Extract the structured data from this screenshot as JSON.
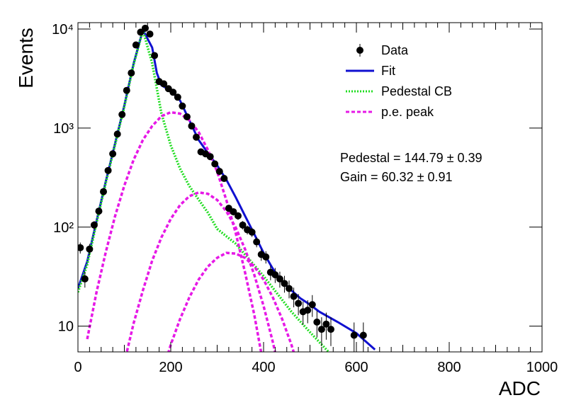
{
  "chart_data": {
    "type": "scatter",
    "xlabel": "ADC",
    "ylabel": "Events",
    "xlim": [
      0,
      1000
    ],
    "ylim": [
      5.5,
      11600
    ],
    "ylog": true,
    "xticks": [
      0,
      200,
      400,
      600,
      800,
      1000
    ],
    "yticks": [
      {
        "value": 10,
        "label": "10"
      },
      {
        "value": 100,
        "label": "10²"
      },
      {
        "value": 1000,
        "label": "10³"
      },
      {
        "value": 10000,
        "label": "10⁴"
      }
    ],
    "legend": "top-right",
    "annotations": [
      "Pedestal = 144.79 ± 0.39",
      "Gain = 60.32 ± 0.91"
    ],
    "series": [
      {
        "name": "Data",
        "kind": "points",
        "color": "#000000",
        "x": [
          5,
          15,
          25,
          35,
          45,
          55,
          65,
          75,
          85,
          95,
          105,
          115,
          125,
          135,
          145,
          155,
          165,
          175,
          185,
          195,
          205,
          215,
          225,
          235,
          245,
          255,
          265,
          275,
          285,
          295,
          305,
          315,
          325,
          335,
          345,
          355,
          365,
          375,
          385,
          395,
          405,
          415,
          425,
          435,
          445,
          455,
          465,
          475,
          485,
          495,
          505,
          515,
          525,
          535,
          545,
          595,
          615
        ],
        "values": [
          62,
          30,
          60,
          105,
          145,
          228,
          373,
          550,
          870,
          1370,
          2400,
          3600,
          6900,
          9300,
          10200,
          8900,
          5400,
          2950,
          2800,
          2500,
          2300,
          2050,
          1670,
          1300,
          1050,
          810,
          575,
          550,
          515,
          435,
          365,
          310,
          155,
          143,
          130,
          105,
          94,
          89,
          71,
          53,
          50,
          35,
          33,
          30,
          27,
          24,
          20,
          17,
          14,
          14.5,
          16.5,
          11,
          9.3,
          10.5,
          9.3,
          8.1,
          8.1
        ],
        "errors": [
          7.9,
          5.5,
          7.7,
          10.2,
          12,
          15.1,
          19.3,
          23.5,
          29.5,
          37,
          49,
          60,
          83,
          96,
          101,
          94,
          73,
          54,
          53,
          50,
          48,
          45,
          41,
          36,
          32,
          28.5,
          24,
          23.5,
          22.7,
          20.9,
          19.1,
          17.6,
          12.4,
          12,
          11.4,
          10.2,
          9.7,
          9.4,
          8.4,
          7.3,
          7.1,
          5.9,
          5.7,
          5.5,
          5.2,
          4.9,
          4.5,
          4.1,
          3.7,
          3.8,
          4.1,
          3.3,
          3.0,
          3.2,
          3.0,
          2.8,
          2.8
        ]
      },
      {
        "name": "Fit",
        "kind": "line",
        "style": "solid",
        "color": "#1010d0",
        "x": [
          0,
          20,
          40,
          60,
          80,
          100,
          120,
          140,
          160,
          170,
          180,
          200,
          220,
          240,
          260,
          280,
          300,
          320,
          340,
          360,
          380,
          400,
          420,
          440,
          460,
          480,
          500,
          520,
          560,
          600,
          640
        ],
        "values": [
          24,
          45,
          115,
          290,
          700,
          1700,
          4500,
          9800,
          6500,
          3600,
          2700,
          2400,
          1900,
          1200,
          760,
          560,
          420,
          300,
          200,
          130,
          85,
          55,
          38,
          28,
          23,
          19,
          16.5,
          14,
          11,
          8.5,
          5.8
        ]
      },
      {
        "name": "Pedestal CB",
        "kind": "line",
        "style": "dotted",
        "color": "#22dd22",
        "x": [
          0,
          20,
          40,
          60,
          80,
          100,
          120,
          140,
          160,
          180,
          200,
          220,
          240,
          260,
          280,
          300,
          340,
          400,
          460,
          500,
          540
        ],
        "values": [
          22,
          42,
          110,
          280,
          680,
          1650,
          4400,
          9700,
          4500,
          1400,
          670,
          390,
          260,
          190,
          140,
          96,
          68,
          32,
          14,
          8.7,
          5.5
        ]
      },
      {
        "name": "p.e. peak",
        "kind": "line",
        "style": "dashed",
        "color": "#e619e6",
        "x": [
          20,
          40,
          60,
          80,
          100,
          120,
          140,
          160,
          180,
          200,
          220,
          240,
          260,
          280,
          300,
          320,
          340,
          360,
          380,
          400,
          null,
          100,
          120,
          140,
          160,
          180,
          200,
          220,
          240,
          260,
          280,
          300,
          320,
          340,
          360,
          380,
          400,
          420,
          440,
          null,
          180,
          200,
          220,
          240,
          260,
          280,
          300,
          320,
          340,
          360,
          380,
          400,
          420,
          440,
          460,
          480
        ],
        "values": [
          7.4,
          22,
          56,
          129,
          263,
          479,
          759,
          1050,
          1320,
          1445,
          1400,
          1200,
          912,
          603,
          363,
          186,
          87,
          35,
          13,
          4,
          null,
          4.3,
          10.7,
          23,
          46,
          79,
          121,
          167,
          205,
          224,
          217,
          188,
          144,
          99,
          60,
          33,
          16,
          6.9,
          2.6,
          null,
          3.2,
          6.5,
          11.8,
          19.5,
          29.5,
          40,
          49,
          55,
          54,
          49,
          40,
          29.5,
          19.5,
          11.8,
          6.5,
          3.2
        ]
      }
    ]
  }
}
